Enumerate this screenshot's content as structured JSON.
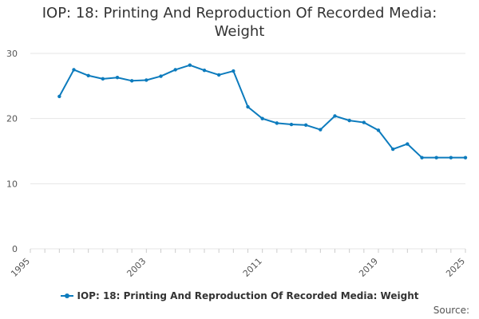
{
  "title_line1": "IOP: 18: Printing And Reproduction Of Recorded Media:",
  "title_line2": "Weight",
  "source_label": "Source:",
  "colors": {
    "series": "#0c7bbd",
    "grid": "#e6e6e6",
    "axis_text": "#555555"
  },
  "chart_data": {
    "type": "line",
    "title": "IOP: 18: Printing And Reproduction Of Recorded Media: Weight",
    "xlabel": "",
    "ylabel": "",
    "xlim": [
      1995,
      2025
    ],
    "ylim": [
      0,
      30
    ],
    "x_ticks": [
      "1995",
      "2003",
      "2011",
      "2019",
      "2025"
    ],
    "y_ticks": [
      "0",
      "10",
      "20",
      "30"
    ],
    "grid": true,
    "legend_position": "bottom",
    "series": [
      {
        "name": "IOP: 18: Printing And Reproduction Of Recorded Media: Weight",
        "x": [
          1997,
          1998,
          1999,
          2000,
          2001,
          2002,
          2003,
          2004,
          2005,
          2006,
          2007,
          2008,
          2009,
          2010,
          2011,
          2012,
          2013,
          2014,
          2015,
          2016,
          2017,
          2018,
          2019,
          2020,
          2021,
          2022,
          2023,
          2024,
          2025
        ],
        "y": [
          23.4,
          27.5,
          26.6,
          26.1,
          26.3,
          25.8,
          25.9,
          26.5,
          27.5,
          28.2,
          27.4,
          26.7,
          27.3,
          21.8,
          20.0,
          19.3,
          19.1,
          19.0,
          18.3,
          20.4,
          19.7,
          19.4,
          18.2,
          15.3,
          16.1,
          14.0,
          14.0,
          14.0,
          14.0
        ]
      }
    ]
  }
}
